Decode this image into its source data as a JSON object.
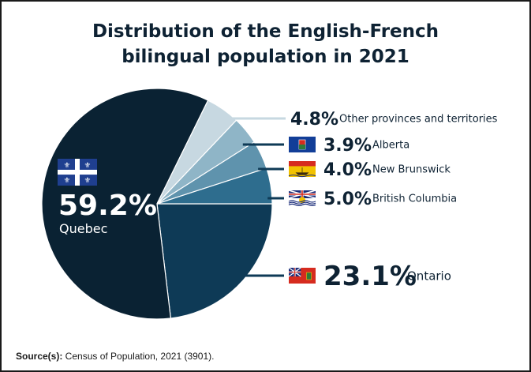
{
  "title_line1": "Distribution of the English-French",
  "title_line2": "bilingual population in 2021",
  "source_label": "Source(s):",
  "source_text": " Census of Population, 2021 (3901).",
  "colors": {
    "Quebec": "#0a2233",
    "Ontario": "#0e3a56",
    "British Columbia": "#2e6d8e",
    "New Brunswick": "#5f93ad",
    "Alberta": "#8fb5c7",
    "Other provinces and territories": "#c7d8e1",
    "leader": "#0e3a56",
    "leader_other": "#c7d8e1"
  },
  "chart_data": {
    "type": "pie",
    "title": "Distribution of the English-French bilingual population in 2021",
    "slices": [
      {
        "label": "Quebec",
        "value": 59.2,
        "value_label": "59.2%",
        "icon": "quebec-flag-icon"
      },
      {
        "label": "Ontario",
        "value": 23.1,
        "value_label": "23.1%",
        "icon": "ontario-flag-icon"
      },
      {
        "label": "British Columbia",
        "value": 5.0,
        "value_label": "5.0%",
        "icon": "british-columbia-flag-icon"
      },
      {
        "label": "New Brunswick",
        "value": 4.0,
        "value_label": "4.0%",
        "icon": "new-brunswick-flag-icon"
      },
      {
        "label": "Alberta",
        "value": 3.9,
        "value_label": "3.9%",
        "icon": "alberta-flag-icon"
      },
      {
        "label": "Other provinces and territories",
        "value": 4.8,
        "value_label": "4.8%",
        "icon": ""
      }
    ]
  }
}
